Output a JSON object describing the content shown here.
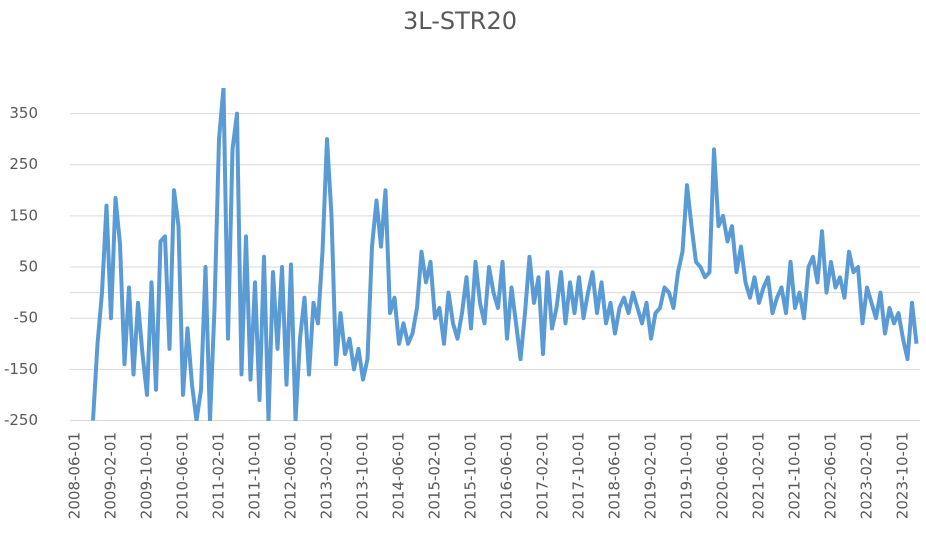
{
  "chart_data": {
    "type": "line",
    "title": "3L-STR20",
    "color": "#5b9bd5",
    "categories": [
      "2008-06-01",
      null,
      null,
      null,
      null,
      null,
      null,
      null,
      "2009-02-01",
      null,
      null,
      null,
      null,
      null,
      null,
      null,
      "2009-10-01",
      null,
      null,
      null,
      null,
      null,
      null,
      null,
      "2010-06-01",
      null,
      null,
      null,
      null,
      null,
      null,
      null,
      "2011-02-01",
      null,
      null,
      null,
      null,
      null,
      null,
      null,
      "2011-10-01",
      null,
      null,
      null,
      null,
      null,
      null,
      null,
      "2012-06-01",
      null,
      null,
      null,
      null,
      null,
      null,
      null,
      "2013-02-01",
      null,
      null,
      null,
      null,
      null,
      null,
      null,
      "2013-10-01",
      null,
      null,
      null,
      null,
      null,
      null,
      null,
      "2014-06-01",
      null,
      null,
      null,
      null,
      null,
      null,
      null,
      "2015-02-01",
      null,
      null,
      null,
      null,
      null,
      null,
      null,
      "2015-10-01",
      null,
      null,
      null,
      null,
      null,
      null,
      null,
      "2016-06-01",
      null,
      null,
      null,
      null,
      null,
      null,
      null,
      "2017-02-01",
      null,
      null,
      null,
      null,
      null,
      null,
      null,
      "2017-10-01",
      null,
      null,
      null,
      null,
      null,
      null,
      null,
      "2018-06-01",
      null,
      null,
      null,
      null,
      null,
      null,
      null,
      "2019-02-01",
      null,
      null,
      null,
      null,
      null,
      null,
      null,
      "2019-10-01",
      null,
      null,
      null,
      null,
      null,
      null,
      null,
      "2020-06-01",
      null,
      null,
      null,
      null,
      null,
      null,
      null,
      "2021-02-01",
      null,
      null,
      null,
      null,
      null,
      null,
      null,
      "2021-10-01",
      null,
      null,
      null,
      null,
      null,
      null,
      null,
      "2022-06-01",
      null,
      null,
      null,
      null,
      null,
      null,
      null,
      "2023-02-01",
      null,
      null,
      null,
      null,
      null,
      null,
      null,
      "2023-10-01",
      null,
      null,
      null
    ],
    "values": [
      null,
      null,
      null,
      null,
      -250,
      -100,
      0,
      170,
      -50,
      185,
      95,
      -140,
      10,
      -160,
      -20,
      -120,
      -200,
      20,
      -190,
      100,
      110,
      -110,
      200,
      130,
      -200,
      -70,
      -180,
      -250,
      -190,
      50,
      -250,
      -30,
      300,
      400,
      -90,
      280,
      350,
      -160,
      110,
      -170,
      20,
      -210,
      70,
      -250,
      40,
      -110,
      50,
      -180,
      55,
      -250,
      -90,
      -10,
      -160,
      -20,
      -60,
      80,
      300,
      150,
      -140,
      -40,
      -120,
      -90,
      -150,
      -110,
      -170,
      -130,
      90,
      180,
      90,
      200,
      -40,
      -10,
      -100,
      -60,
      -100,
      -80,
      -30,
      80,
      20,
      60,
      -50,
      -30,
      -100,
      0,
      -60,
      -90,
      -40,
      30,
      -70,
      60,
      -20,
      -60,
      50,
      0,
      -30,
      60,
      -90,
      10,
      -60,
      -130,
      -40,
      70,
      -20,
      30,
      -120,
      40,
      -70,
      -30,
      40,
      -60,
      20,
      -40,
      30,
      -50,
      0,
      40,
      -40,
      20,
      -60,
      -20,
      -80,
      -30,
      -10,
      -40,
      0,
      -30,
      -60,
      -20,
      -90,
      -40,
      -30,
      10,
      0,
      -30,
      40,
      80,
      210,
      130,
      60,
      50,
      30,
      40,
      280,
      130,
      150,
      100,
      130,
      40,
      90,
      20,
      -10,
      30,
      -20,
      10,
      30,
      -40,
      -10,
      10,
      -40,
      60,
      -30,
      0,
      -50,
      50,
      70,
      20,
      120,
      0,
      60,
      10,
      30,
      -10,
      80,
      40,
      50,
      -60,
      10,
      -20,
      -50,
      0,
      -80,
      -30,
      -60,
      -40,
      -90,
      -130,
      -20,
      -100
    ],
    "ylim": [
      -250,
      400
    ],
    "yticks": [
      -250,
      -150,
      -50,
      50,
      150,
      250,
      350
    ],
    "grid": true
  }
}
